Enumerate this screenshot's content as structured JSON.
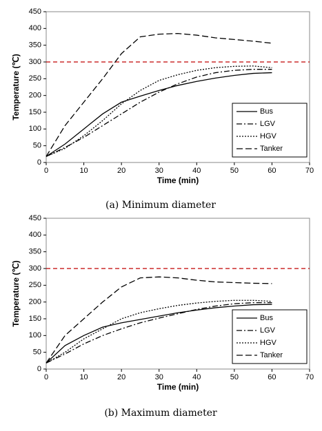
{
  "chart_data": [
    {
      "type": "line",
      "caption": "(a) Minimum diameter",
      "xlabel": "Time (min)",
      "ylabel": "Temperature (℃)",
      "x": [
        0,
        5,
        10,
        15,
        20,
        25,
        30,
        35,
        40,
        45,
        50,
        55,
        60
      ],
      "xlim": [
        0,
        70
      ],
      "xticks": [
        0,
        10,
        20,
        30,
        40,
        50,
        60,
        70
      ],
      "ylim": [
        0,
        450
      ],
      "yticks": [
        0,
        50,
        100,
        150,
        200,
        250,
        300,
        350,
        400,
        450
      ],
      "threshold": {
        "value": 300,
        "color": "#c00000"
      },
      "legend": "lower right",
      "series": [
        {
          "name": "Bus",
          "color": "#000000",
          "dash": "solid",
          "values": [
            18,
            55,
            100,
            145,
            180,
            198,
            215,
            230,
            242,
            252,
            260,
            266,
            268
          ]
        },
        {
          "name": "LGV",
          "color": "#000000",
          "dash": "dashdot",
          "values": [
            18,
            45,
            75,
            110,
            145,
            180,
            210,
            235,
            255,
            268,
            275,
            278,
            278
          ]
        },
        {
          "name": "HGV",
          "color": "#000000",
          "dash": "dotted",
          "values": [
            18,
            42,
            80,
            125,
            175,
            215,
            245,
            262,
            275,
            283,
            287,
            288,
            283
          ]
        },
        {
          "name": "Tanker",
          "color": "#000000",
          "dash": "dashed",
          "values": [
            18,
            110,
            180,
            250,
            325,
            375,
            383,
            385,
            380,
            372,
            367,
            362,
            356
          ]
        }
      ]
    },
    {
      "type": "line",
      "caption": "(b) Maximum diameter",
      "xlabel": "Time (min)",
      "ylabel": "Temperature (℃)",
      "x": [
        0,
        5,
        10,
        15,
        20,
        25,
        30,
        35,
        40,
        45,
        50,
        55,
        60
      ],
      "xlim": [
        0,
        70
      ],
      "xticks": [
        0,
        10,
        20,
        30,
        40,
        50,
        60,
        70
      ],
      "ylim": [
        0,
        450
      ],
      "yticks": [
        0,
        50,
        100,
        150,
        200,
        250,
        300,
        350,
        400,
        450
      ],
      "threshold": {
        "value": 300,
        "color": "#c00000"
      },
      "legend": "lower right",
      "series": [
        {
          "name": "Bus",
          "color": "#000000",
          "dash": "solid",
          "values": [
            18,
            70,
            100,
            125,
            138,
            148,
            158,
            168,
            176,
            183,
            188,
            192,
            193
          ]
        },
        {
          "name": "LGV",
          "color": "#000000",
          "dash": "dashdot",
          "values": [
            18,
            45,
            75,
            100,
            120,
            138,
            152,
            165,
            178,
            188,
            195,
            198,
            198
          ]
        },
        {
          "name": "HGV",
          "color": "#000000",
          "dash": "dotted",
          "values": [
            18,
            50,
            90,
            120,
            150,
            168,
            180,
            190,
            197,
            202,
            205,
            205,
            202
          ]
        },
        {
          "name": "Tanker",
          "color": "#000000",
          "dash": "dashed",
          "values": [
            18,
            100,
            150,
            200,
            245,
            272,
            275,
            272,
            265,
            260,
            258,
            256,
            255
          ]
        }
      ]
    }
  ]
}
